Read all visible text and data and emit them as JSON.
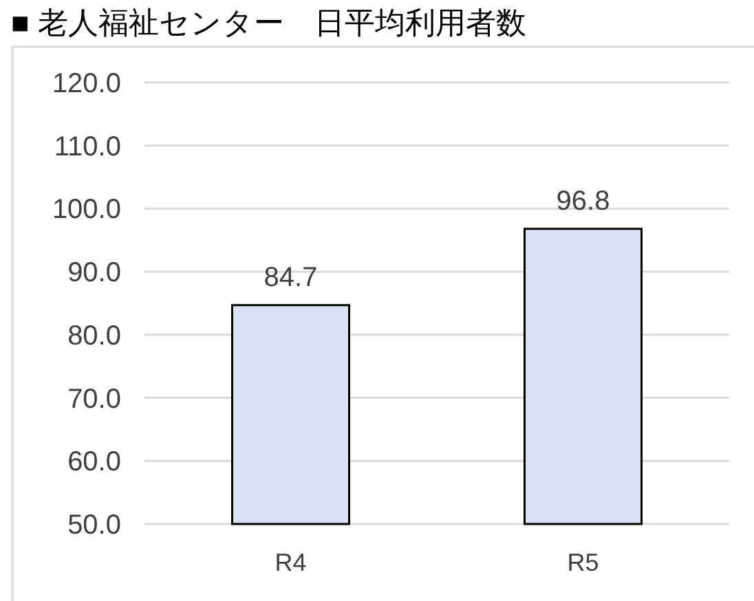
{
  "chart_data": {
    "type": "bar",
    "title": "■ 老人福祉センター　日平均利用者数",
    "categories": [
      "R4",
      "R5"
    ],
    "values": [
      84.7,
      96.8
    ],
    "color": "#dae3f3",
    "ylim": [
      50,
      120
    ],
    "yticks": [
      {
        "value": 50,
        "label": "50.0"
      },
      {
        "value": 60,
        "label": "60.0"
      },
      {
        "value": 70,
        "label": "70.0"
      },
      {
        "value": 80,
        "label": "80.0"
      },
      {
        "value": 90,
        "label": "90.0"
      },
      {
        "value": 100,
        "label": "100.0"
      },
      {
        "value": 110,
        "label": "110.0"
      },
      {
        "value": 120,
        "label": "120.0"
      }
    ],
    "grid": "y",
    "data_labels": true
  }
}
